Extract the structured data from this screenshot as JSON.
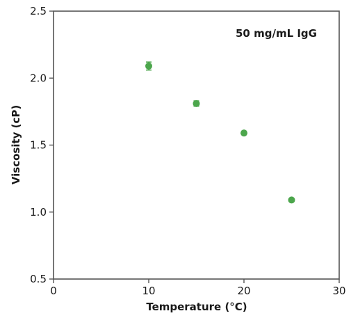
{
  "chart_data": {
    "type": "scatter",
    "title": "",
    "xlabel": "Temperature (°C)",
    "ylabel": "Viscosity (cP)",
    "annotation": "50 mg/mL IgG",
    "xlim": [
      0,
      30
    ],
    "ylim": [
      0.5,
      2.5
    ],
    "xticks": [
      0,
      10,
      20,
      30
    ],
    "yticks": [
      0.5,
      1.0,
      1.5,
      2.0,
      2.5
    ],
    "xtick_labels": [
      "0",
      "10",
      "20",
      "30"
    ],
    "ytick_labels": [
      "0.5",
      "1.0",
      "1.5",
      "2.0",
      "2.5"
    ],
    "grid": false,
    "points": [
      {
        "x": 10,
        "y": 2.09,
        "err": 0.03
      },
      {
        "x": 15,
        "y": 1.81,
        "err": 0.02
      },
      {
        "x": 20,
        "y": 1.59,
        "err": 0
      },
      {
        "x": 25,
        "y": 1.09,
        "err": 0
      }
    ],
    "marker_color": "#4ca64c",
    "axis_color": "#555555"
  }
}
